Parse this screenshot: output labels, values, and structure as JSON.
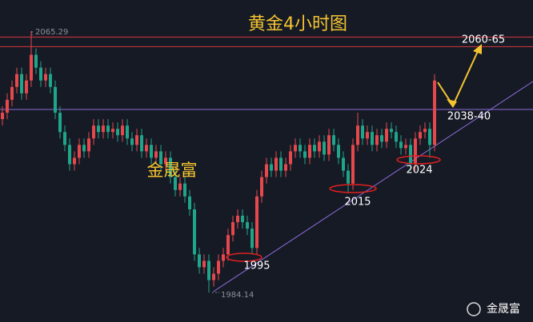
{
  "chart_data": {
    "type": "candlestick",
    "title": "黄金4小时图",
    "ylim": [
      1975,
      2075
    ],
    "up_color": "#e5484d",
    "down_color": "#1fa58a",
    "candles": [
      [
        2038,
        2042,
        2036,
        2040
      ],
      [
        2040,
        2046,
        2038,
        2044
      ],
      [
        2044,
        2050,
        2042,
        2048
      ],
      [
        2048,
        2054,
        2046,
        2052
      ],
      [
        2052,
        2054,
        2044,
        2046
      ],
      [
        2046,
        2052,
        2044,
        2050
      ],
      [
        2050,
        2065.29,
        2048,
        2058
      ],
      [
        2058,
        2060,
        2052,
        2054
      ],
      [
        2054,
        2056,
        2048,
        2050
      ],
      [
        2050,
        2054,
        2048,
        2052
      ],
      [
        2052,
        2054,
        2046,
        2048
      ],
      [
        2048,
        2050,
        2038,
        2040
      ],
      [
        2040,
        2042,
        2032,
        2034
      ],
      [
        2034,
        2036,
        2028,
        2030
      ],
      [
        2030,
        2032,
        2022,
        2024
      ],
      [
        2024,
        2028,
        2022,
        2026
      ],
      [
        2026,
        2032,
        2024,
        2030
      ],
      [
        2030,
        2032,
        2026,
        2028
      ],
      [
        2028,
        2034,
        2026,
        2032
      ],
      [
        2032,
        2038,
        2030,
        2036
      ],
      [
        2036,
        2038,
        2032,
        2034
      ],
      [
        2034,
        2038,
        2032,
        2036
      ],
      [
        2036,
        2038,
        2032,
        2034
      ],
      [
        2034,
        2037,
        2032,
        2035
      ],
      [
        2035,
        2037,
        2031,
        2033
      ],
      [
        2033,
        2038,
        2031,
        2036
      ],
      [
        2036,
        2038,
        2030,
        2032
      ],
      [
        2032,
        2034,
        2028,
        2030
      ],
      [
        2030,
        2035,
        2028,
        2033
      ],
      [
        2033,
        2035,
        2026,
        2028
      ],
      [
        2028,
        2032,
        2026,
        2030
      ],
      [
        2030,
        2032,
        2024,
        2026
      ],
      [
        2026,
        2030,
        2024,
        2028
      ],
      [
        2028,
        2030,
        2022,
        2024
      ],
      [
        2024,
        2028,
        2022,
        2026
      ],
      [
        2026,
        2028,
        2018,
        2020
      ],
      [
        2020,
        2022,
        2014,
        2016
      ],
      [
        2016,
        2020,
        2014,
        2018
      ],
      [
        2018,
        2020,
        2012,
        2014
      ],
      [
        2014,
        2016,
        2008,
        2010
      ],
      [
        2010,
        2012,
        1994,
        1996
      ],
      [
        1996,
        1998,
        1990,
        1992
      ],
      [
        1992,
        1996,
        1990,
        1994
      ],
      [
        1994,
        1996,
        1984.14,
        1988
      ],
      [
        1988,
        1992,
        1986,
        1990
      ],
      [
        1990,
        1996,
        1988,
        1994
      ],
      [
        1994,
        1998,
        1992,
        1996
      ],
      [
        1996,
        2004,
        1994,
        2002
      ],
      [
        2002,
        2008,
        2000,
        2006
      ],
      [
        2006,
        2010,
        2004,
        2008
      ],
      [
        2008,
        2010,
        2004,
        2006
      ],
      [
        2006,
        2008,
        2002,
        2004
      ],
      [
        2004,
        2006,
        1996,
        1998
      ],
      [
        1998,
        2016,
        1996,
        2014
      ],
      [
        2014,
        2022,
        2012,
        2020
      ],
      [
        2020,
        2026,
        2018,
        2024
      ],
      [
        2024,
        2026,
        2020,
        2022
      ],
      [
        2022,
        2028,
        2020,
        2026
      ],
      [
        2026,
        2028,
        2020,
        2022
      ],
      [
        2022,
        2026,
        2020,
        2024
      ],
      [
        2024,
        2030,
        2022,
        2028
      ],
      [
        2028,
        2032,
        2026,
        2030
      ],
      [
        2030,
        2032,
        2026,
        2028
      ],
      [
        2028,
        2030,
        2024,
        2026
      ],
      [
        2026,
        2032,
        2024,
        2030
      ],
      [
        2030,
        2032,
        2026,
        2028
      ],
      [
        2028,
        2033,
        2026,
        2031
      ],
      [
        2031,
        2033,
        2025,
        2027
      ],
      [
        2027,
        2035,
        2025,
        2033
      ],
      [
        2033,
        2035,
        2028,
        2030
      ],
      [
        2030,
        2032,
        2024,
        2026
      ],
      [
        2026,
        2028,
        2020,
        2022
      ],
      [
        2022,
        2024,
        2015,
        2018
      ],
      [
        2018,
        2032,
        2016,
        2030
      ],
      [
        2030,
        2040,
        2028,
        2036
      ],
      [
        2036,
        2038,
        2030,
        2032
      ],
      [
        2032,
        2036,
        2030,
        2034
      ],
      [
        2034,
        2036,
        2028,
        2030
      ],
      [
        2030,
        2035,
        2028,
        2033
      ],
      [
        2033,
        2035,
        2029,
        2031
      ],
      [
        2031,
        2037,
        2029,
        2035
      ],
      [
        2035,
        2037,
        2032,
        2034
      ],
      [
        2034,
        2036,
        2029,
        2031
      ],
      [
        2031,
        2033,
        2027,
        2029
      ],
      [
        2029,
        2032,
        2027,
        2030
      ],
      [
        2030,
        2032,
        2022,
        2024
      ],
      [
        2024,
        2034,
        2022,
        2032
      ],
      [
        2032,
        2036,
        2030,
        2034
      ],
      [
        2034,
        2037,
        2032,
        2035
      ],
      [
        2035,
        2037,
        2026,
        2030
      ],
      [
        2030,
        2052,
        2028,
        2050
      ]
    ],
    "hlines": [
      {
        "value": 2063.5,
        "color": "#d9363e"
      },
      {
        "value": 2060.5,
        "color": "#d9363e"
      },
      {
        "value": 2041,
        "color": "#8a6bd8"
      }
    ],
    "trendline": {
      "color": "#8a6bd8",
      "from": [
        44,
        1984.5
      ],
      "to": [
        110.5,
        2049.7
      ]
    },
    "high_label": "2065.29",
    "low_label": "1984.14",
    "annotations": [
      "1995",
      "2015",
      "2024",
      "2038-40",
      "2060-65"
    ],
    "watermark": "金晟富",
    "brand": "金晟富"
  }
}
